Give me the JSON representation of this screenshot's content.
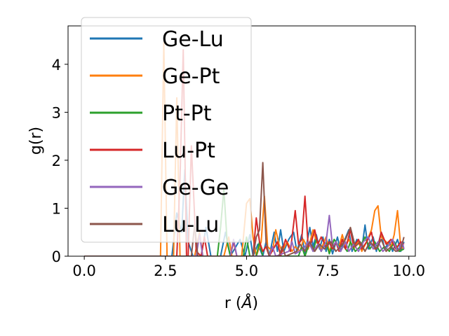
{
  "chart_data": {
    "type": "line",
    "xlabel": "r (",
    "xlabel_unit": "Å",
    "xlabel_close": ")",
    "ylabel": "g(r)",
    "xlim": [
      -0.5,
      10.2
    ],
    "ylim": [
      0,
      4.8
    ],
    "xticks": [
      "0.0",
      "2.5",
      "5.0",
      "7.5",
      "10.0"
    ],
    "xtick_values": [
      0,
      2.5,
      5.0,
      7.5,
      10.0
    ],
    "yticks": [
      "0",
      "1",
      "2",
      "3",
      "4"
    ],
    "ytick_values": [
      0,
      1,
      2,
      3,
      4
    ],
    "legend_position": "upper-left",
    "series": [
      {
        "name": "Ge-Lu",
        "color": "#1f77b4",
        "points": [
          [
            0,
            0
          ],
          [
            2.7,
            0
          ],
          [
            2.85,
            0.9
          ],
          [
            3.0,
            0.5
          ],
          [
            3.1,
            1.8
          ],
          [
            3.2,
            0.3
          ],
          [
            3.35,
            0
          ],
          [
            3.6,
            0
          ],
          [
            3.75,
            0.6
          ],
          [
            3.9,
            0
          ],
          [
            4.2,
            0
          ],
          [
            4.35,
            0.5
          ],
          [
            4.5,
            0
          ],
          [
            4.8,
            0.35
          ],
          [
            4.95,
            0
          ],
          [
            5.1,
            0.45
          ],
          [
            5.2,
            0
          ],
          [
            5.35,
            0.25
          ],
          [
            5.5,
            0
          ],
          [
            5.6,
            0.3
          ],
          [
            5.7,
            0
          ],
          [
            5.85,
            0.5
          ],
          [
            5.95,
            0.1
          ],
          [
            6.05,
            0.55
          ],
          [
            6.15,
            0.1
          ],
          [
            6.3,
            0.35
          ],
          [
            6.45,
            0.5
          ],
          [
            6.55,
            0.1
          ],
          [
            6.7,
            0.45
          ],
          [
            6.8,
            0.05
          ],
          [
            6.95,
            0.6
          ],
          [
            7.05,
            0.2
          ],
          [
            7.15,
            0.45
          ],
          [
            7.25,
            0.15
          ],
          [
            7.35,
            0.4
          ],
          [
            7.45,
            0.1
          ],
          [
            7.55,
            0.35
          ],
          [
            7.65,
            0.05
          ],
          [
            7.8,
            0.4
          ],
          [
            7.9,
            0.1
          ],
          [
            8.0,
            0.3
          ],
          [
            8.15,
            0.55
          ],
          [
            8.25,
            0.1
          ],
          [
            8.4,
            0.35
          ],
          [
            8.55,
            0.15
          ],
          [
            8.65,
            0.65
          ],
          [
            8.75,
            0.15
          ],
          [
            8.9,
            0.4
          ],
          [
            9.0,
            0.1
          ],
          [
            9.15,
            0.5
          ],
          [
            9.25,
            0.15
          ],
          [
            9.4,
            0.3
          ],
          [
            9.5,
            0.1
          ],
          [
            9.65,
            0.35
          ],
          [
            9.75,
            0.1
          ],
          [
            9.85,
            0.3
          ]
        ]
      },
      {
        "name": "Ge-Pt",
        "color": "#ff7f0e",
        "points": [
          [
            0,
            0
          ],
          [
            2.35,
            0
          ],
          [
            2.45,
            4.45
          ],
          [
            2.55,
            0
          ],
          [
            2.75,
            0
          ],
          [
            2.85,
            3.3
          ],
          [
            2.95,
            0
          ],
          [
            3.4,
            0
          ],
          [
            3.55,
            0.5
          ],
          [
            3.65,
            0
          ],
          [
            4.3,
            0
          ],
          [
            4.45,
            0.4
          ],
          [
            4.55,
            0
          ],
          [
            4.85,
            0
          ],
          [
            5.0,
            1.1
          ],
          [
            5.1,
            1.2
          ],
          [
            5.2,
            0.4
          ],
          [
            5.3,
            0
          ],
          [
            5.45,
            0.3
          ],
          [
            5.55,
            1.25
          ],
          [
            5.65,
            0.2
          ],
          [
            5.8,
            0.1
          ],
          [
            5.9,
            0.55
          ],
          [
            6.0,
            0.25
          ],
          [
            6.1,
            0.1
          ],
          [
            6.25,
            0.3
          ],
          [
            6.4,
            0.1
          ],
          [
            6.5,
            0.2
          ],
          [
            6.65,
            0.1
          ],
          [
            6.75,
            0.35
          ],
          [
            6.9,
            0.15
          ],
          [
            7.05,
            0.55
          ],
          [
            7.15,
            0.3
          ],
          [
            7.3,
            0.15
          ],
          [
            7.45,
            0.4
          ],
          [
            7.55,
            0.1
          ],
          [
            7.7,
            0.35
          ],
          [
            7.85,
            0.2
          ],
          [
            7.95,
            0.45
          ],
          [
            8.05,
            0.2
          ],
          [
            8.15,
            0.35
          ],
          [
            8.3,
            0.15
          ],
          [
            8.45,
            0.3
          ],
          [
            8.55,
            0.1
          ],
          [
            8.7,
            0.3
          ],
          [
            8.85,
            0.55
          ],
          [
            8.95,
            0.95
          ],
          [
            9.05,
            1.05
          ],
          [
            9.15,
            0.4
          ],
          [
            9.3,
            0.3
          ],
          [
            9.45,
            0.2
          ],
          [
            9.55,
            0.45
          ],
          [
            9.65,
            0.95
          ],
          [
            9.75,
            0.2
          ],
          [
            9.85,
            0.15
          ]
        ]
      },
      {
        "name": "Pt-Pt",
        "color": "#2ca02c",
        "points": [
          [
            0,
            0
          ],
          [
            4.1,
            0
          ],
          [
            4.2,
            0.6
          ],
          [
            4.3,
            1.4
          ],
          [
            4.4,
            0.3
          ],
          [
            4.5,
            0
          ],
          [
            4.9,
            0
          ],
          [
            5.0,
            0.4
          ],
          [
            5.1,
            0
          ],
          [
            5.3,
            0
          ],
          [
            5.4,
            0.3
          ],
          [
            5.5,
            0
          ],
          [
            6.6,
            0
          ],
          [
            6.7,
            0.2
          ],
          [
            6.8,
            0
          ],
          [
            6.95,
            0.3
          ],
          [
            7.05,
            0.1
          ],
          [
            7.15,
            0.35
          ],
          [
            7.3,
            0.1
          ],
          [
            7.45,
            0.3
          ],
          [
            7.55,
            0.05
          ],
          [
            7.7,
            0.35
          ],
          [
            7.85,
            0.2
          ],
          [
            7.95,
            0.25
          ],
          [
            8.1,
            0.1
          ],
          [
            8.2,
            0.3
          ],
          [
            8.35,
            0.1
          ],
          [
            8.5,
            0.2
          ],
          [
            8.65,
            0.4
          ],
          [
            8.8,
            0.15
          ],
          [
            8.95,
            0.3
          ],
          [
            9.1,
            0.1
          ],
          [
            9.25,
            0.2
          ],
          [
            9.4,
            0.1
          ],
          [
            9.55,
            0.3
          ],
          [
            9.7,
            0.1
          ],
          [
            9.85,
            0.15
          ]
        ]
      },
      {
        "name": "Lu-Pt",
        "color": "#d62728",
        "points": [
          [
            0,
            0
          ],
          [
            2.85,
            0
          ],
          [
            2.95,
            1.6
          ],
          [
            3.05,
            4.3
          ],
          [
            3.15,
            0
          ],
          [
            3.2,
            0
          ],
          [
            3.3,
            2.3
          ],
          [
            3.45,
            0.1
          ],
          [
            3.6,
            0
          ],
          [
            3.7,
            0.4
          ],
          [
            3.8,
            0
          ],
          [
            4.5,
            0
          ],
          [
            4.6,
            0.3
          ],
          [
            4.7,
            0
          ],
          [
            5.2,
            0
          ],
          [
            5.3,
            0.8
          ],
          [
            5.4,
            0.3
          ],
          [
            5.5,
            0.1
          ],
          [
            5.6,
            0.2
          ],
          [
            5.7,
            0
          ],
          [
            5.95,
            0.3
          ],
          [
            6.05,
            0
          ],
          [
            6.2,
            0.35
          ],
          [
            6.35,
            0.1
          ],
          [
            6.5,
            0.95
          ],
          [
            6.6,
            0.25
          ],
          [
            6.7,
            0.35
          ],
          [
            6.8,
            1.25
          ],
          [
            6.9,
            0.2
          ],
          [
            7.0,
            0.3
          ],
          [
            7.1,
            0.55
          ],
          [
            7.2,
            0.25
          ],
          [
            7.3,
            0.4
          ],
          [
            7.45,
            0.2
          ],
          [
            7.55,
            0.3
          ],
          [
            7.65,
            0.15
          ],
          [
            7.75,
            0.3
          ],
          [
            7.85,
            0.1
          ],
          [
            7.95,
            0.35
          ],
          [
            8.05,
            0.15
          ],
          [
            8.2,
            0.55
          ],
          [
            8.3,
            0.2
          ],
          [
            8.45,
            0.35
          ],
          [
            8.55,
            0.15
          ],
          [
            8.7,
            0.3
          ],
          [
            8.85,
            0.5
          ],
          [
            8.95,
            0.15
          ],
          [
            9.05,
            0.2
          ],
          [
            9.15,
            0.5
          ],
          [
            9.3,
            0.25
          ],
          [
            9.45,
            0.35
          ],
          [
            9.6,
            0.15
          ],
          [
            9.75,
            0.3
          ],
          [
            9.85,
            0.25
          ]
        ]
      },
      {
        "name": "Ge-Ge",
        "color": "#9467bd",
        "points": [
          [
            0,
            0
          ],
          [
            3.45,
            0
          ],
          [
            3.55,
            0.45
          ],
          [
            3.65,
            0
          ],
          [
            4.5,
            0
          ],
          [
            4.6,
            0.35
          ],
          [
            4.7,
            0
          ],
          [
            5.7,
            0
          ],
          [
            5.8,
            0.2
          ],
          [
            5.9,
            0
          ],
          [
            6.3,
            0.1
          ],
          [
            6.4,
            0.3
          ],
          [
            6.5,
            0.05
          ],
          [
            6.75,
            0.15
          ],
          [
            6.9,
            0.3
          ],
          [
            7.05,
            0.1
          ],
          [
            7.2,
            0.25
          ],
          [
            7.3,
            0.1
          ],
          [
            7.45,
            0.3
          ],
          [
            7.55,
            0.85
          ],
          [
            7.65,
            0.2
          ],
          [
            7.75,
            0.3
          ],
          [
            7.9,
            0.1
          ],
          [
            8.05,
            0.3
          ],
          [
            8.15,
            0.1
          ],
          [
            8.3,
            0.25
          ],
          [
            8.45,
            0.1
          ],
          [
            8.6,
            0.3
          ],
          [
            8.75,
            0.4
          ],
          [
            8.9,
            0.15
          ],
          [
            9.05,
            0.3
          ],
          [
            9.2,
            0.1
          ],
          [
            9.35,
            0.2
          ],
          [
            9.5,
            0.35
          ],
          [
            9.65,
            0.1
          ],
          [
            9.8,
            0.3
          ],
          [
            9.85,
            0.15
          ]
        ]
      },
      {
        "name": "Lu-Lu",
        "color": "#8c564b",
        "points": [
          [
            0,
            0
          ],
          [
            3.3,
            0
          ],
          [
            3.4,
            0.65
          ],
          [
            3.5,
            0
          ],
          [
            5.2,
            0
          ],
          [
            5.3,
            0.4
          ],
          [
            5.4,
            0.55
          ],
          [
            5.5,
            1.95
          ],
          [
            5.6,
            0.3
          ],
          [
            5.7,
            0
          ],
          [
            6.0,
            0
          ],
          [
            6.1,
            0.2
          ],
          [
            6.2,
            0
          ],
          [
            6.55,
            0.1
          ],
          [
            6.65,
            0.25
          ],
          [
            6.8,
            0.1
          ],
          [
            6.95,
            0.3
          ],
          [
            7.1,
            0.1
          ],
          [
            7.25,
            0.25
          ],
          [
            7.4,
            0.15
          ],
          [
            7.6,
            0.3
          ],
          [
            7.75,
            0.1
          ],
          [
            7.9,
            0.2
          ],
          [
            8.05,
            0.35
          ],
          [
            8.2,
            0.6
          ],
          [
            8.35,
            0.2
          ],
          [
            8.5,
            0.3
          ],
          [
            8.65,
            0.1
          ],
          [
            8.8,
            0.3
          ],
          [
            9.0,
            0.15
          ],
          [
            9.15,
            0.35
          ],
          [
            9.3,
            0.1
          ],
          [
            9.45,
            0.2
          ],
          [
            9.6,
            0.1
          ],
          [
            9.75,
            0.15
          ],
          [
            9.85,
            0.4
          ]
        ]
      }
    ]
  }
}
